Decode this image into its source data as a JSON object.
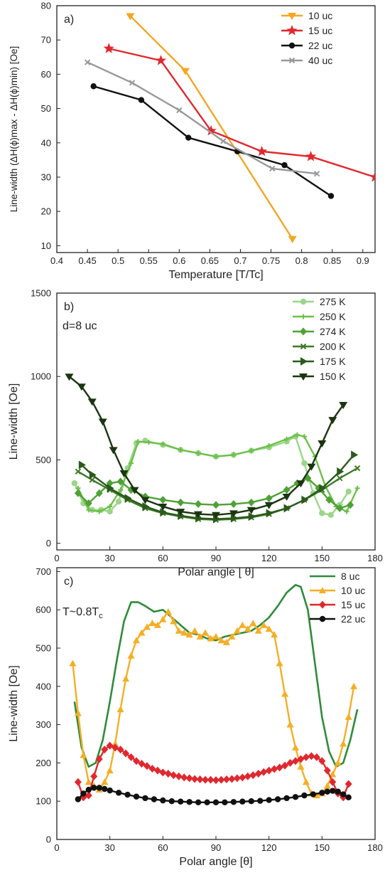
{
  "chart_data": [
    {
      "type": "line",
      "panel_label": "a)",
      "xlabel": "Temperature [T/Tc]",
      "ylabel": "Line-width (ΔH(ϕ)max - ΔH(ϕ)min) [Oe]",
      "xlim": [
        0.4,
        0.92
      ],
      "ylim": [
        8,
        80
      ],
      "xticks": [
        "0.4",
        "0.45",
        "0.5",
        "0.55",
        "0.6",
        "0.65",
        "0.7",
        "0.75",
        "0.8",
        "0.85",
        "0.9"
      ],
      "yticks": [
        "10",
        "20",
        "30",
        "40",
        "50",
        "60",
        "70",
        "80"
      ],
      "legend": "top-right",
      "series": [
        {
          "name": "10 uc",
          "color": "#f5a623",
          "marker": "triangle-down",
          "x": [
            0.52,
            0.61,
            0.785
          ],
          "y": [
            77,
            61,
            12
          ]
        },
        {
          "name": "15 uc",
          "color": "#e0282e",
          "marker": "star",
          "x": [
            0.485,
            0.57,
            0.652,
            0.735,
            0.815,
            0.92
          ],
          "y": [
            67.5,
            64,
            43.5,
            37.5,
            36,
            30
          ]
        },
        {
          "name": "22 uc",
          "color": "#111111",
          "marker": "circle",
          "x": [
            0.46,
            0.538,
            0.615,
            0.695,
            0.772,
            0.848
          ],
          "y": [
            56.5,
            52.5,
            41.5,
            37.5,
            33.5,
            24.5
          ]
        },
        {
          "name": "40 uc",
          "color": "#999999",
          "marker": "x",
          "x": [
            0.45,
            0.523,
            0.6,
            0.672,
            0.752,
            0.825
          ],
          "y": [
            63.5,
            57.5,
            49.5,
            40.5,
            32.5,
            31
          ]
        }
      ]
    },
    {
      "type": "line",
      "panel_label": "b)",
      "annotation": "d=8 uc",
      "xlabel": "Polar angle [ θ]",
      "ylabel": "Line-width [Oe]",
      "xlim": [
        0,
        180
      ],
      "ylim": [
        -40,
        1500
      ],
      "xticks": [
        "0",
        "30",
        "60",
        "90",
        "120",
        "150",
        "180"
      ],
      "yticks": [
        "0",
        "500",
        "1000",
        "1500"
      ],
      "legend": "top-right",
      "series": [
        {
          "name": "275 K",
          "color": "#9bd58a",
          "marker": "circle",
          "x": [
            10,
            15,
            20,
            25,
            30,
            35,
            40,
            45,
            50,
            60,
            70,
            80,
            90,
            100,
            110,
            120,
            130,
            135,
            140,
            145,
            150,
            155,
            160,
            165
          ],
          "y": [
            360,
            240,
            200,
            200,
            190,
            250,
            450,
            600,
            615,
            590,
            560,
            540,
            520,
            530,
            555,
            575,
            610,
            640,
            480,
            300,
            180,
            170,
            230,
            310
          ]
        },
        {
          "name": "250 K",
          "color": "#6cc04a",
          "marker": "plus",
          "x": [
            12,
            18,
            24,
            30,
            36,
            42,
            46,
            52,
            60,
            70,
            80,
            90,
            100,
            110,
            120,
            130,
            136,
            140,
            146,
            152,
            158,
            164,
            170
          ],
          "y": [
            330,
            200,
            190,
            220,
            320,
            480,
            610,
            605,
            595,
            560,
            540,
            520,
            530,
            555,
            585,
            625,
            650,
            640,
            520,
            340,
            220,
            190,
            330
          ]
        },
        {
          "name": "274 K",
          "color": "#4ea136",
          "marker": "diamond",
          "x": [
            12,
            18,
            24,
            30,
            36,
            42,
            50,
            60,
            70,
            80,
            90,
            100,
            110,
            120,
            130,
            136,
            142,
            148,
            154,
            160,
            166
          ],
          "y": [
            300,
            240,
            300,
            360,
            370,
            320,
            280,
            260,
            245,
            235,
            230,
            235,
            245,
            270,
            320,
            360,
            390,
            330,
            260,
            210,
            230
          ]
        },
        {
          "name": "200 K",
          "color": "#3c7a28",
          "marker": "x",
          "x": [
            12,
            20,
            30,
            40,
            50,
            60,
            70,
            80,
            90,
            100,
            110,
            120,
            130,
            140,
            150,
            160,
            170
          ],
          "y": [
            430,
            380,
            320,
            260,
            210,
            180,
            160,
            145,
            140,
            145,
            155,
            175,
            210,
            260,
            320,
            390,
            450
          ]
        },
        {
          "name": "175 K",
          "color": "#2b5a1b",
          "marker": "triangle-right",
          "x": [
            14,
            20,
            30,
            40,
            50,
            60,
            70,
            80,
            90,
            100,
            110,
            120,
            130,
            140,
            150,
            160,
            168
          ],
          "y": [
            470,
            410,
            330,
            270,
            220,
            185,
            165,
            150,
            145,
            150,
            160,
            180,
            210,
            260,
            330,
            430,
            530
          ]
        },
        {
          "name": "150 K",
          "color": "#1b3510",
          "marker": "triangle-down",
          "x": [
            7,
            14,
            20,
            26,
            32,
            38,
            44,
            50,
            60,
            70,
            80,
            90,
            100,
            110,
            120,
            130,
            138,
            144,
            150,
            156,
            162
          ],
          "y": [
            1000,
            940,
            850,
            730,
            560,
            420,
            320,
            260,
            220,
            190,
            175,
            170,
            180,
            200,
            230,
            280,
            360,
            460,
            600,
            740,
            830
          ]
        }
      ]
    },
    {
      "type": "line",
      "panel_label": "c)",
      "annotation": "T~0.8T",
      "annotation_sub": "c",
      "xlabel": "Polar angle [θ]",
      "ylabel": "Line-width [Oe]",
      "xlim": [
        0,
        180
      ],
      "ylim": [
        0,
        710
      ],
      "xticks": [
        "0",
        "30",
        "60",
        "90",
        "120",
        "150",
        "180"
      ],
      "yticks": [
        "0",
        "100",
        "200",
        "300",
        "400",
        "500",
        "600",
        "700"
      ],
      "legend": "top-right",
      "series": [
        {
          "name": "8 uc",
          "color": "#2e8b3a",
          "marker": "none",
          "x": [
            10,
            14,
            18,
            22,
            26,
            30,
            34,
            38,
            42,
            46,
            50,
            55,
            60,
            65,
            70,
            75,
            80,
            85,
            90,
            95,
            100,
            105,
            110,
            115,
            120,
            125,
            130,
            135,
            138,
            142,
            146,
            150,
            154,
            158,
            162,
            166,
            170
          ],
          "y": [
            360,
            240,
            190,
            200,
            260,
            360,
            470,
            570,
            620,
            620,
            610,
            595,
            600,
            580,
            560,
            540,
            535,
            525,
            520,
            530,
            535,
            540,
            545,
            560,
            580,
            610,
            645,
            665,
            660,
            600,
            460,
            320,
            230,
            190,
            200,
            260,
            340
          ]
        },
        {
          "name": "10 uc",
          "color": "#f5ae25",
          "marker": "triangle-up",
          "x": [
            9,
            12,
            15,
            18,
            21,
            24,
            27,
            30,
            33,
            36,
            39,
            42,
            45,
            48,
            51,
            54,
            57,
            60,
            63,
            66,
            69,
            72,
            75,
            78,
            81,
            84,
            87,
            90,
            93,
            96,
            99,
            102,
            105,
            108,
            111,
            114,
            117,
            120,
            123,
            126,
            129,
            132,
            135,
            138,
            141,
            144,
            147,
            150,
            153,
            156,
            159,
            162,
            165,
            168
          ],
          "y": [
            460,
            330,
            220,
            150,
            140,
            130,
            150,
            180,
            250,
            340,
            420,
            480,
            520,
            540,
            555,
            565,
            560,
            575,
            595,
            570,
            545,
            540,
            535,
            545,
            530,
            540,
            525,
            530,
            520,
            515,
            530,
            545,
            560,
            550,
            565,
            545,
            560,
            550,
            535,
            460,
            380,
            300,
            240,
            190,
            150,
            120,
            115,
            120,
            140,
            170,
            200,
            250,
            320,
            400
          ]
        },
        {
          "name": "15 uc",
          "color": "#e0282e",
          "marker": "diamond",
          "x": [
            12,
            15,
            18,
            21,
            24,
            27,
            30,
            33,
            36,
            39,
            42,
            45,
            48,
            51,
            54,
            57,
            60,
            63,
            66,
            69,
            72,
            75,
            78,
            81,
            84,
            87,
            90,
            93,
            96,
            99,
            102,
            105,
            108,
            111,
            114,
            117,
            120,
            123,
            126,
            129,
            132,
            135,
            138,
            141,
            144,
            147,
            150,
            153,
            156,
            159,
            162,
            165
          ],
          "y": [
            150,
            110,
            115,
            165,
            210,
            235,
            245,
            240,
            235,
            225,
            215,
            205,
            198,
            192,
            185,
            180,
            175,
            172,
            168,
            165,
            162,
            160,
            158,
            157,
            156,
            156,
            155,
            156,
            157,
            158,
            160,
            162,
            165,
            168,
            172,
            176,
            180,
            184,
            188,
            193,
            200,
            205,
            210,
            215,
            218,
            215,
            205,
            180,
            150,
            120,
            110,
            145
          ]
        },
        {
          "name": "22 uc",
          "color": "#111111",
          "marker": "circle",
          "x": [
            12,
            15,
            18,
            21,
            24,
            27,
            30,
            35,
            40,
            45,
            50,
            55,
            60,
            65,
            70,
            75,
            80,
            85,
            90,
            95,
            100,
            105,
            110,
            115,
            120,
            125,
            130,
            135,
            140,
            145,
            150,
            153,
            156,
            159,
            162,
            165
          ],
          "y": [
            105,
            120,
            130,
            135,
            135,
            132,
            128,
            122,
            117,
            112,
            108,
            105,
            102,
            100,
            99,
            98,
            97,
            97,
            97,
            97,
            98,
            99,
            100,
            101,
            103,
            105,
            108,
            111,
            115,
            118,
            122,
            125,
            127,
            125,
            118,
            110
          ]
        }
      ]
    }
  ]
}
